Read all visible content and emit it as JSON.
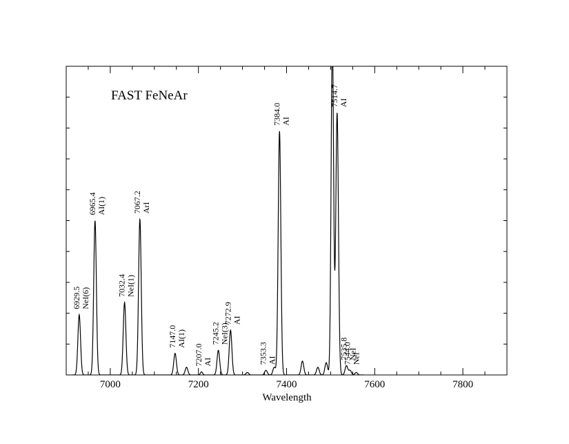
{
  "chart_data": {
    "type": "line",
    "title": "FAST FeNeAr",
    "xlabel": "Wavelength",
    "ylabel": "",
    "xlim": [
      6900,
      7900
    ],
    "ylim": [
      0,
      1
    ],
    "x_ticks": [
      7000,
      7200,
      7400,
      7600,
      7800
    ],
    "x_tick_labels": [
      "7000",
      "7200",
      "7400",
      "7600",
      "7800"
    ],
    "y_tick_count": 10,
    "grid": false,
    "series": [
      {
        "peaks": [
          {
            "center": 6929.5,
            "height": 0.195,
            "width": 3.0
          },
          {
            "center": 6965.4,
            "height": 0.5,
            "width": 3.0
          },
          {
            "center": 7032.4,
            "height": 0.235,
            "width": 3.0
          },
          {
            "center": 7067.2,
            "height": 0.505,
            "width": 3.0
          },
          {
            "center": 7147.0,
            "height": 0.07,
            "width": 3.0
          },
          {
            "center": 7173.0,
            "height": 0.025,
            "width": 3.0
          },
          {
            "center": 7207.0,
            "height": 0.01,
            "width": 2.5
          },
          {
            "center": 7245.2,
            "height": 0.08,
            "width": 3.0
          },
          {
            "center": 7272.9,
            "height": 0.145,
            "width": 3.0
          },
          {
            "center": 7311.0,
            "height": 0.008,
            "width": 3.0
          },
          {
            "center": 7353.3,
            "height": 0.015,
            "width": 3.0
          },
          {
            "center": 7372.0,
            "height": 0.025,
            "width": 3.0
          },
          {
            "center": 7384.0,
            "height": 0.79,
            "width": 3.0
          },
          {
            "center": 7436.0,
            "height": 0.045,
            "width": 3.0
          },
          {
            "center": 7471.0,
            "height": 0.025,
            "width": 3.0
          },
          {
            "center": 7490.0,
            "height": 0.04,
            "width": 3.0
          },
          {
            "center": 7503.9,
            "height": 1.1,
            "width": 2.8
          },
          {
            "center": 7514.7,
            "height": 0.85,
            "width": 3.0
          },
          {
            "center": 7535.8,
            "height": 0.03,
            "width": 3.0
          },
          {
            "center": 7544.0,
            "height": 0.015,
            "width": 3.0
          },
          {
            "center": 7558.0,
            "height": 0.008,
            "width": 3.0
          }
        ],
        "baseline": 0.0,
        "x_end": 7575
      }
    ],
    "line_labels": [
      {
        "wavelength": 6929.5,
        "line1": "6929.5",
        "line2": "NeI(6)",
        "peak_height": 0.195
      },
      {
        "wavelength": 6965.4,
        "line1": "6965.4",
        "line2": "AI(1)",
        "peak_height": 0.5
      },
      {
        "wavelength": 7032.4,
        "line1": "7032.4",
        "line2": "NeI(1)",
        "peak_height": 0.235
      },
      {
        "wavelength": 7067.2,
        "line1": "7067.2",
        "line2": "ArI",
        "peak_height": 0.505
      },
      {
        "wavelength": 7147.0,
        "line1": "7147.0",
        "line2": "AI(1)",
        "peak_height": 0.07
      },
      {
        "wavelength": 7207.0,
        "line1": "7207.0",
        "line2": "AI",
        "peak_height": 0.01
      },
      {
        "wavelength": 7245.2,
        "line1": "7245.2",
        "line2": "NeI(3)",
        "peak_height": 0.08
      },
      {
        "wavelength": 7272.9,
        "line1": "7272.9",
        "line2": "AI",
        "peak_height": 0.145
      },
      {
        "wavelength": 7353.3,
        "line1": "7353.3",
        "line2": "AI",
        "peak_height": 0.015
      },
      {
        "wavelength": 7384.0,
        "line1": "7384.0",
        "line2": "AI",
        "peak_height": 0.79
      },
      {
        "wavelength": 7514.7,
        "line1": "7514.7",
        "line2": "AI",
        "peak_height": 0.85
      },
      {
        "wavelength": 7535.8,
        "line1": "7535.8",
        "line2": "NeI",
        "peak_height": 0.03
      },
      {
        "wavelength": 7544.0,
        "line1": "7544.0",
        "line2": "NeI",
        "peak_height": 0.015
      }
    ]
  }
}
